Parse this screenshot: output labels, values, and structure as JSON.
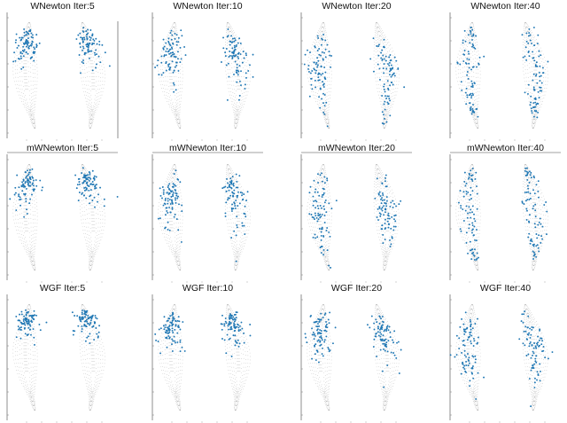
{
  "figure": {
    "background": "#ffffff",
    "particle_color": "#1f77b4",
    "contour_color": "#8c8c8c"
  },
  "chart_data": [
    {
      "type": "scatter",
      "title": "WNewton Iter:5",
      "method": "WNewton",
      "iteration": 5,
      "spread": 0.25
    },
    {
      "type": "scatter",
      "title": "WNewton Iter:10",
      "method": "WNewton",
      "iteration": 10,
      "spread": 0.55
    },
    {
      "type": "scatter",
      "title": "WNewton Iter:20",
      "method": "WNewton",
      "iteration": 20,
      "spread": 0.95
    },
    {
      "type": "scatter",
      "title": "WNewton Iter:40",
      "method": "WNewton",
      "iteration": 40,
      "spread": 1.0
    },
    {
      "type": "scatter",
      "title": "mWNewton Iter:5",
      "method": "mWNewton",
      "iteration": 5,
      "spread": 0.25
    },
    {
      "type": "scatter",
      "title": "mWNewton Iter:10",
      "method": "mWNewton",
      "iteration": 10,
      "spread": 0.55
    },
    {
      "type": "scatter",
      "title": "mWNewton Iter:20",
      "method": "mWNewton",
      "iteration": 20,
      "spread": 0.95
    },
    {
      "type": "scatter",
      "title": "mWNewton Iter:40",
      "method": "mWNewton",
      "iteration": 40,
      "spread": 1.0
    },
    {
      "type": "scatter",
      "title": "WGF Iter:5",
      "method": "WGF",
      "iteration": 5,
      "spread": 0.12
    },
    {
      "type": "scatter",
      "title": "WGF Iter:10",
      "method": "WGF",
      "iteration": 10,
      "spread": 0.3
    },
    {
      "type": "scatter",
      "title": "WGF Iter:20",
      "method": "WGF",
      "iteration": 20,
      "spread": 0.45
    },
    {
      "type": "scatter",
      "title": "WGF Iter:40",
      "method": "WGF",
      "iteration": 40,
      "spread": 0.85
    }
  ]
}
